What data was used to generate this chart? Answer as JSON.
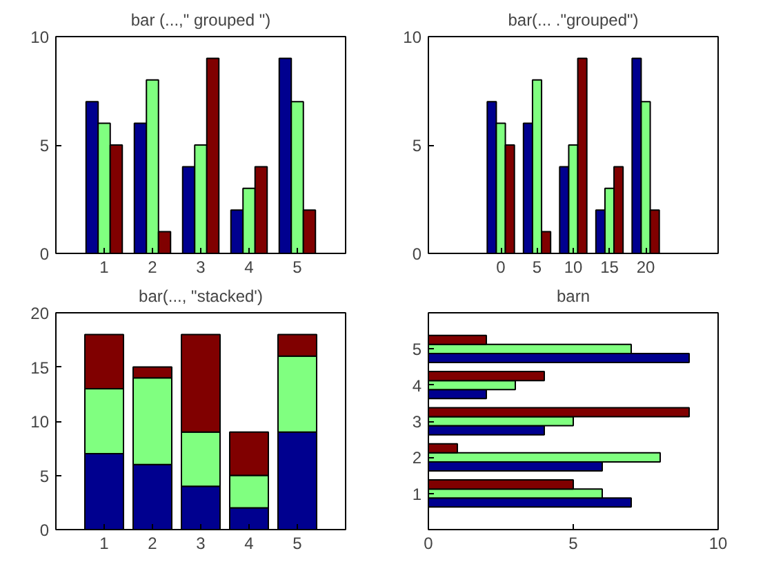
{
  "chart_data": [
    {
      "type": "bar",
      "title": "bar (...,\" grouped \")",
      "categories": [
        "1",
        "2",
        "3",
        "4",
        "5"
      ],
      "ylim": [
        0,
        10
      ],
      "yticks": [
        0,
        5,
        10
      ],
      "grid": false,
      "series": [
        {
          "color": "#00008f",
          "values": [
            7,
            6,
            4,
            2,
            9
          ]
        },
        {
          "color": "#80ff80",
          "values": [
            6,
            8,
            5,
            3,
            7
          ]
        },
        {
          "color": "#800000",
          "values": [
            5,
            1,
            9,
            4,
            2
          ]
        }
      ]
    },
    {
      "type": "bar",
      "title": "bar(... .\"grouped\")",
      "x": [
        0,
        5,
        10,
        15,
        20
      ],
      "xlim": [
        -10,
        30
      ],
      "xticks": [
        0,
        5,
        10,
        15,
        20
      ],
      "ylim": [
        0,
        10
      ],
      "yticks": [
        0,
        5,
        10
      ],
      "grid": false,
      "series": [
        {
          "color": "#00008f",
          "values": [
            7,
            6,
            4,
            2,
            9
          ]
        },
        {
          "color": "#80ff80",
          "values": [
            6,
            8,
            5,
            3,
            7
          ]
        },
        {
          "color": "#800000",
          "values": [
            5,
            1,
            9,
            4,
            2
          ]
        }
      ]
    },
    {
      "type": "bar",
      "title": "bar(..., \"stacked')",
      "stacked": true,
      "categories": [
        "1",
        "2",
        "3",
        "4",
        "5"
      ],
      "ylim": [
        0,
        20
      ],
      "yticks": [
        0,
        5,
        10,
        15,
        20
      ],
      "grid": false,
      "series": [
        {
          "color": "#00008f",
          "values": [
            7,
            6,
            4,
            2,
            9
          ]
        },
        {
          "color": "#80ff80",
          "values": [
            6,
            8,
            5,
            3,
            7
          ]
        },
        {
          "color": "#800000",
          "values": [
            5,
            1,
            9,
            4,
            2
          ]
        }
      ]
    },
    {
      "type": "bar",
      "title": "barn",
      "orientation": "horizontal",
      "categories": [
        "5",
        "4",
        "3",
        "2",
        "1"
      ],
      "xlim": [
        0,
        10
      ],
      "xticks": [
        0,
        5,
        10
      ],
      "grid": false,
      "series": [
        {
          "color": "#00008f",
          "values": [
            9,
            2,
            4,
            6,
            7
          ]
        },
        {
          "color": "#80ff80",
          "values": [
            7,
            3,
            5,
            8,
            6
          ]
        },
        {
          "color": "#800000",
          "values": [
            2,
            4,
            9,
            1,
            5
          ]
        }
      ]
    }
  ]
}
